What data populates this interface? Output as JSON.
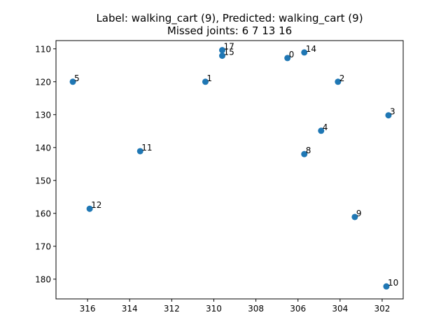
{
  "chart_data": {
    "type": "scatter",
    "title": "Label: walking_cart (9), Predicted: walking_cart (9)",
    "subtitle": "Missed joints: 6 7 13 16",
    "xlabel": "",
    "ylabel": "",
    "xlim": [
      317.5,
      301.0
    ],
    "ylim": [
      186.0,
      107.5
    ],
    "x_inverted": true,
    "y_inverted": true,
    "xticks": [
      316,
      314,
      312,
      310,
      308,
      306,
      304,
      302
    ],
    "yticks": [
      110,
      120,
      130,
      140,
      150,
      160,
      170,
      180
    ],
    "grid": false,
    "color": "#1f77b4",
    "points": [
      {
        "label": "0",
        "x": 306.5,
        "y": 112.8
      },
      {
        "label": "1",
        "x": 310.4,
        "y": 120.0
      },
      {
        "label": "2",
        "x": 304.1,
        "y": 120.0
      },
      {
        "label": "3",
        "x": 301.7,
        "y": 130.2
      },
      {
        "label": "4",
        "x": 304.9,
        "y": 134.9
      },
      {
        "label": "5",
        "x": 316.7,
        "y": 120.0
      },
      {
        "label": "8",
        "x": 305.7,
        "y": 142.0
      },
      {
        "label": "10",
        "x": 301.8,
        "y": 182.2
      },
      {
        "label": "11",
        "x": 313.5,
        "y": 141.1
      },
      {
        "label": "12",
        "x": 315.9,
        "y": 158.6
      },
      {
        "label": "9",
        "x": 303.3,
        "y": 161.1
      },
      {
        "label": "14",
        "x": 305.7,
        "y": 111.1
      },
      {
        "label": "15",
        "x": 309.6,
        "y": 112.1
      },
      {
        "label": "17",
        "x": 309.6,
        "y": 110.4
      }
    ]
  }
}
